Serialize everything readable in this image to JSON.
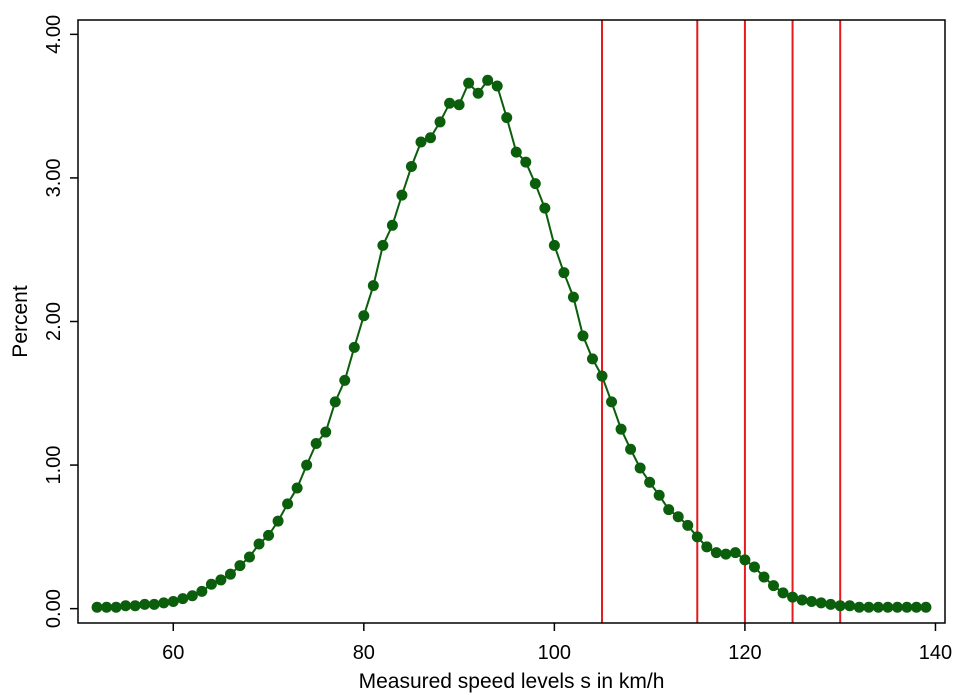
{
  "chart_data": {
    "type": "line",
    "title": "",
    "xlabel": "Measured speed levels s in km/h",
    "ylabel": "Percent",
    "xlim": [
      50,
      141
    ],
    "ylim": [
      -0.1,
      4.1
    ],
    "grid": false,
    "x_ticks": [
      60,
      80,
      100,
      120,
      140
    ],
    "x_tick_labels": [
      "60",
      "80",
      "100",
      "120",
      "140"
    ],
    "y_ticks": [
      0,
      1,
      2,
      3,
      4
    ],
    "y_tick_labels": [
      "0.00",
      "1.00",
      "2.00",
      "3.00",
      "4.00"
    ],
    "vertical_lines": [
      105,
      115,
      120,
      125,
      130
    ],
    "colors": {
      "series": "#0b5e0b",
      "vertical_lines": "#e41a1c"
    },
    "series": [
      {
        "x": [
          52,
          53,
          54,
          55,
          56,
          57,
          58,
          59,
          60,
          61,
          62,
          63,
          64,
          65,
          66,
          67,
          68,
          69,
          70,
          71,
          72,
          73,
          74,
          75,
          76,
          77,
          78,
          79,
          80,
          81,
          82,
          83,
          84,
          85,
          86,
          87,
          88,
          89,
          90,
          91,
          92,
          93,
          94,
          95,
          96,
          97,
          98,
          99,
          100,
          101,
          102,
          103,
          104,
          105,
          106,
          107,
          108,
          109,
          110,
          111,
          112,
          113,
          114,
          115,
          116,
          117,
          118,
          119,
          120,
          121,
          122,
          123,
          124,
          125,
          126,
          127,
          128,
          129,
          130,
          131,
          132,
          133,
          134,
          135,
          136,
          137,
          138,
          139
        ],
        "values": [
          0.01,
          0.01,
          0.01,
          0.02,
          0.02,
          0.03,
          0.03,
          0.04,
          0.05,
          0.07,
          0.09,
          0.12,
          0.17,
          0.2,
          0.24,
          0.3,
          0.36,
          0.45,
          0.51,
          0.61,
          0.73,
          0.84,
          1.0,
          1.15,
          1.23,
          1.44,
          1.59,
          1.82,
          2.04,
          2.25,
          2.53,
          2.67,
          2.88,
          3.08,
          3.25,
          3.28,
          3.39,
          3.52,
          3.51,
          3.66,
          3.59,
          3.68,
          3.64,
          3.42,
          3.18,
          3.11,
          2.96,
          2.79,
          2.53,
          2.34,
          2.17,
          1.9,
          1.74,
          1.62,
          1.44,
          1.25,
          1.11,
          0.98,
          0.88,
          0.79,
          0.69,
          0.64,
          0.58,
          0.5,
          0.43,
          0.39,
          0.38,
          0.39,
          0.34,
          0.29,
          0.22,
          0.16,
          0.11,
          0.08,
          0.06,
          0.05,
          0.04,
          0.03,
          0.02,
          0.02,
          0.01,
          0.01,
          0.01,
          0.01,
          0.01,
          0.01,
          0.01,
          0.01
        ]
      }
    ]
  }
}
